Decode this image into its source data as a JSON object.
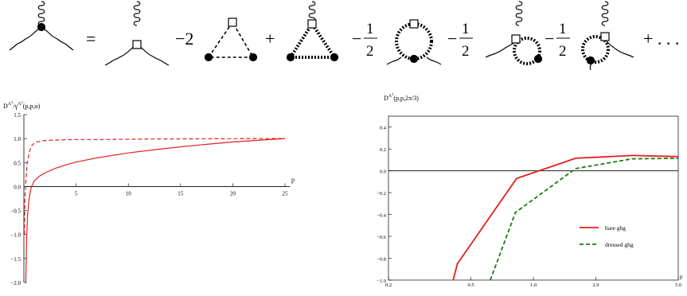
{
  "equation": {
    "equals": "=",
    "coef_two": "−2",
    "plus": "+",
    "minus": "−",
    "half_num": "1",
    "half_den": "2",
    "trailing": "+ . . ."
  },
  "chart_data": [
    {
      "type": "line",
      "title": "D^{A^3}/γ^{A^3}(p,p,α)",
      "title_main": "D",
      "title_sup1": "A",
      "title_sup2": "3",
      "title_sep": "/γ",
      "title_args": "(p,p,α)",
      "xlabel": "p",
      "xlim": [
        0,
        25
      ],
      "ylim": [
        -2.0,
        1.5
      ],
      "xticks": [
        5,
        10,
        15,
        20,
        25
      ],
      "yticks": [
        "1.5",
        "1.0",
        "0.5",
        "0.0",
        "−0.5",
        "−1.0",
        "−1.5",
        "−2.0"
      ],
      "ytick_values": [
        1.5,
        1.0,
        0.5,
        0.0,
        -0.5,
        -1.0,
        -1.5,
        -2.0
      ],
      "series": [
        {
          "style": "solid",
          "color": "#e0201c",
          "x": [
            0.18,
            0.25,
            0.35,
            0.5,
            0.7,
            1.0,
            1.5,
            2,
            3,
            4,
            5,
            7,
            10,
            13,
            16,
            20,
            25
          ],
          "y": [
            -2.0,
            -1.2,
            -0.6,
            -0.25,
            -0.02,
            0.12,
            0.22,
            0.28,
            0.38,
            0.45,
            0.51,
            0.6,
            0.7,
            0.78,
            0.85,
            0.93,
            1.0
          ]
        },
        {
          "style": "dashed",
          "color": "#e0201c",
          "x": [
            0.05,
            0.1,
            0.2,
            0.3,
            0.5,
            0.8,
            1.2,
            2,
            3,
            5,
            8,
            12,
            18,
            25
          ],
          "y": [
            -1.0,
            -0.3,
            0.15,
            0.45,
            0.72,
            0.87,
            0.93,
            0.96,
            0.97,
            0.98,
            0.98,
            0.99,
            0.995,
            1.0
          ]
        }
      ]
    },
    {
      "type": "line",
      "title": "D^{A^3}(p,p,2π/3)",
      "title_main": "D",
      "title_sup1": "A",
      "title_sup2": "3",
      "title_args": "(p,p,2π/3)",
      "xlabel": "p",
      "xscale": "log",
      "xlim": [
        0.2,
        5.0
      ],
      "ylim": [
        -1.0,
        0.5
      ],
      "xticks": [
        "0.2",
        "0.5",
        "1.0",
        "2.0",
        "5.0"
      ],
      "xtick_values": [
        0.2,
        0.5,
        1.0,
        2.0,
        5.0
      ],
      "yticks": [
        "0.4",
        "0.2",
        "0.0",
        "−0.2",
        "−0.4",
        "−0.6",
        "−0.8",
        "−1.0"
      ],
      "ytick_values": [
        0.4,
        0.2,
        0.0,
        -0.2,
        -0.4,
        -0.6,
        -0.8,
        -1.0
      ],
      "legend_position": "lower-right",
      "series": [
        {
          "name": "bare ghg",
          "style": "solid",
          "color": "#e0201c",
          "x": [
            0.41,
            0.43,
            0.83,
            1.6,
            3.0,
            5.0
          ],
          "y": [
            -1.0,
            -0.85,
            -0.07,
            0.115,
            0.14,
            0.13
          ]
        },
        {
          "name": "dressed ghg",
          "style": "dashed",
          "color": "#1a7a10",
          "x": [
            0.62,
            0.82,
            1.6,
            3.0,
            5.0
          ],
          "y": [
            -1.0,
            -0.38,
            0.02,
            0.11,
            0.115
          ]
        }
      ]
    }
  ]
}
